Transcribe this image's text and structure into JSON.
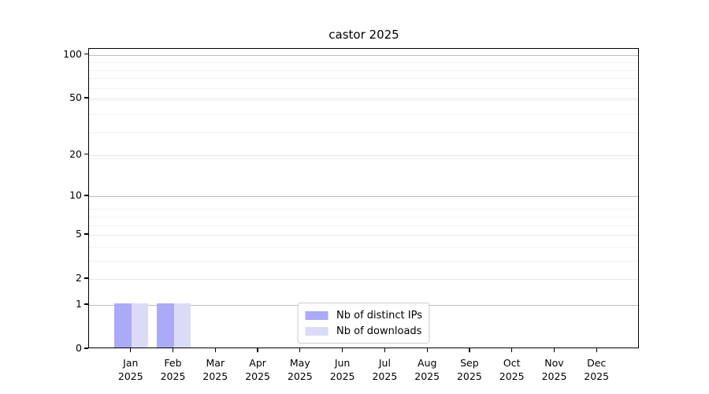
{
  "chart_data": {
    "type": "bar",
    "title": "castor 2025",
    "x_months": [
      "Jan",
      "Feb",
      "Mar",
      "Apr",
      "May",
      "Jun",
      "Jul",
      "Aug",
      "Sep",
      "Oct",
      "Nov",
      "Dec"
    ],
    "x_year": "2025",
    "series": [
      {
        "name": "Nb of distinct IPs",
        "color": "#aaaaf8",
        "values": [
          1,
          1,
          0,
          0,
          0,
          0,
          0,
          0,
          0,
          0,
          0,
          0
        ]
      },
      {
        "name": "Nb of downloads",
        "color": "#dbdbf8",
        "values": [
          1,
          1,
          0,
          0,
          0,
          0,
          0,
          0,
          0,
          0,
          0,
          0
        ]
      }
    ],
    "y_axis": {
      "scale": "log1p",
      "ticks": [
        0,
        1,
        2,
        5,
        10,
        20,
        50,
        100
      ],
      "decade_ticks": [
        1,
        10,
        100
      ],
      "minor_ticks": [
        3,
        4,
        6,
        7,
        8,
        19,
        29,
        39,
        49,
        59,
        69,
        79,
        89
      ],
      "max": 110
    },
    "grid": true,
    "legend_position": "lower center"
  },
  "colors": {
    "grid_decade": "#bdbdbd",
    "grid_labeled": "#e6e6e6",
    "grid_minor": "#f2f2f2",
    "spine": "#000000",
    "background": "#ffffff"
  }
}
